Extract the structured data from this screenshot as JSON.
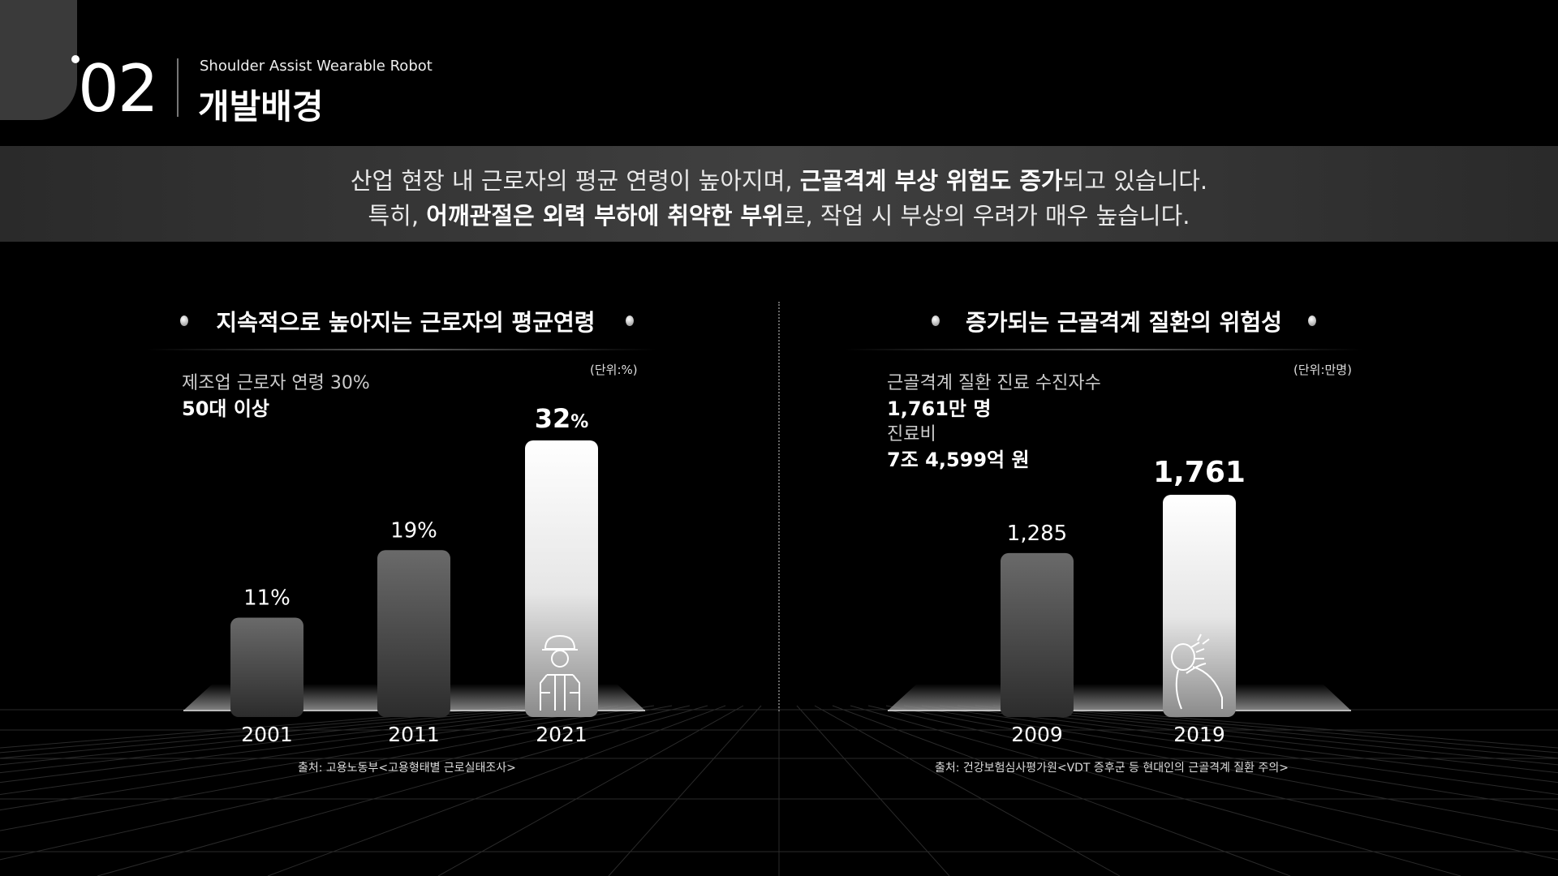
{
  "header": {
    "section_number": "02",
    "subtitle": "Shoulder Assist Wearable Robot",
    "title": "개발배경"
  },
  "banner": {
    "line1": {
      "pre": "산업 현장 내 근로자의 평균 연령이 높아지며, ",
      "bold": "근골격계 부상 위험도 증가",
      "post": "되고 있습니다."
    },
    "line2": {
      "pre": "특히, ",
      "bold": "어깨관절은 외력 부하에 취약한 부위",
      "post": "로, 작업 시 부상의 우려가 매우 높습니다."
    }
  },
  "left_panel": {
    "title": "지속적으로 높아지는 근로자의 평균연령",
    "unit": "(단위:%)",
    "info_label": "제조업 근로자 연령  30%",
    "info_value": "50대 이상",
    "source": "출처: 고용노동부<고용형태별 근로실태조사>"
  },
  "right_panel": {
    "title": "증가되는 근골격계 질환의 위험성",
    "unit": "(단위:만명)",
    "info_label_1": "근골격계 질환 진료 수진자수",
    "info_value_1": "1,761만 명",
    "info_label_2": "진료비",
    "info_value_2": "7조 4,599억 원",
    "source": "출처: 건강보험심사평가원<VDT 증후군 등 현대인의 근골격계 질환 주의>"
  },
  "icons": [
    "worker-helmet-icon",
    "shoulder-pain-icon"
  ],
  "chart_data": [
    {
      "type": "bar",
      "categories": [
        "2001",
        "2011",
        "2021"
      ],
      "values": [
        11,
        19,
        32
      ],
      "data_labels": [
        "11%",
        "19%",
        "32"
      ],
      "label_suffix_last": "%",
      "ylim": [
        0,
        32
      ],
      "highlight_index": 2
    },
    {
      "type": "bar",
      "categories": [
        "2009",
        "2019"
      ],
      "values": [
        1285,
        1761
      ],
      "data_labels": [
        "1,285",
        "1,761"
      ],
      "ylim": [
        0,
        1761
      ],
      "highlight_index": 1
    }
  ]
}
